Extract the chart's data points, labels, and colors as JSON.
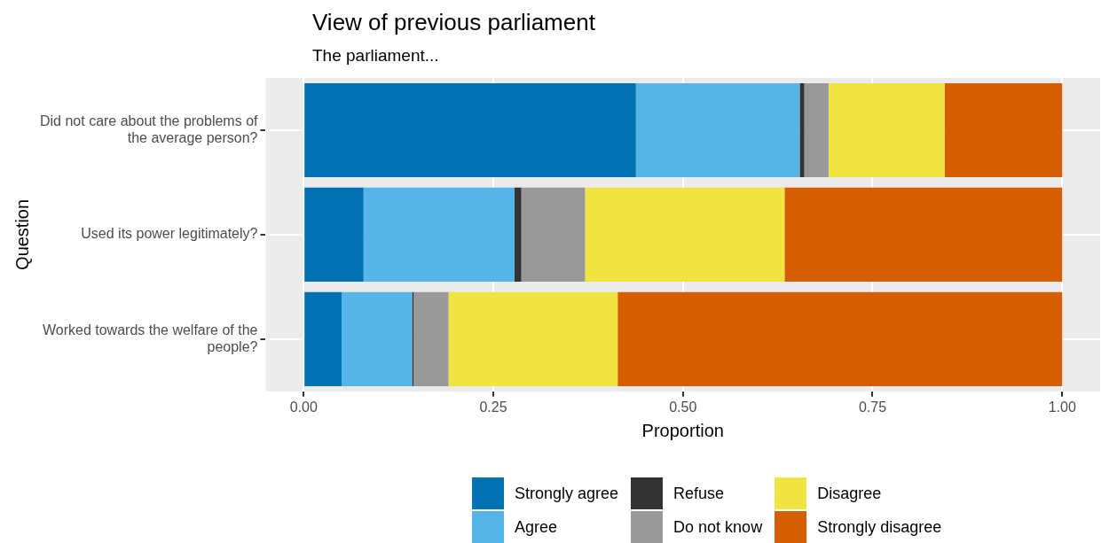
{
  "chart_data": {
    "type": "bar",
    "orientation": "horizontal",
    "stacked": true,
    "title": "View of previous parliament",
    "subtitle": "The parliament...",
    "xlabel": "Proportion",
    "ylabel": "Question",
    "categories": [
      "Did not care about the problems of the average person?",
      "Used its power legitimately?",
      "Worked towards the welfare of the people?"
    ],
    "series": [
      {
        "name": "Strongly agree",
        "color": "#0072b2",
        "values": [
          0.438,
          0.079,
          0.05
        ]
      },
      {
        "name": "Agree",
        "color": "#56b4e9",
        "values": [
          0.216,
          0.199,
          0.093
        ]
      },
      {
        "name": "Refuse",
        "color": "#333333",
        "values": [
          0.006,
          0.009,
          0.002
        ]
      },
      {
        "name": "Do not know",
        "color": "#999999",
        "values": [
          0.032,
          0.084,
          0.046
        ]
      },
      {
        "name": "Disagree",
        "color": "#f0e442",
        "values": [
          0.153,
          0.263,
          0.223
        ]
      },
      {
        "name": "Strongly disagree",
        "color": "#d55e00",
        "values": [
          0.155,
          0.366,
          0.586
        ]
      }
    ],
    "xlim": [
      -0.05,
      1.05
    ],
    "xticks": [
      {
        "value": 0,
        "label": "0.00"
      },
      {
        "value": 0.25,
        "label": "0.25"
      },
      {
        "value": 0.5,
        "label": "0.50"
      },
      {
        "value": 0.75,
        "label": "0.75"
      },
      {
        "value": 1,
        "label": "1.00"
      }
    ],
    "grid": true,
    "legend": "bottom"
  }
}
